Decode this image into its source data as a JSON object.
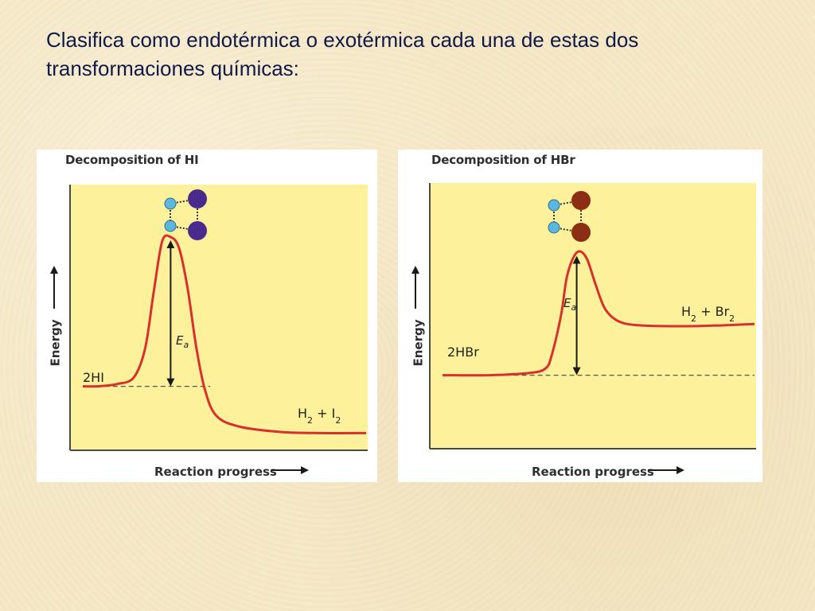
{
  "slide": {
    "title": "Clasifica como endotérmica o exotérmica cada una de estas dos transformaciones químicas:"
  },
  "chart_data": [
    {
      "type": "line",
      "title": "Decomposition of HI",
      "xlabel": "Reaction progress",
      "ylabel": "Energy",
      "reactant_label": "2HI",
      "product_label_parts": [
        "H",
        "2",
        " + I",
        "2"
      ],
      "activation_label": [
        "E",
        "a"
      ],
      "reactant_energy": 0.28,
      "peak_energy": 0.95,
      "product_energy": 0.07,
      "profile": [
        [
          0,
          0.28
        ],
        [
          0.05,
          0.28
        ],
        [
          0.12,
          0.29
        ],
        [
          0.18,
          0.32
        ],
        [
          0.22,
          0.45
        ],
        [
          0.25,
          0.7
        ],
        [
          0.28,
          0.93
        ],
        [
          0.31,
          0.95
        ],
        [
          0.34,
          0.9
        ],
        [
          0.37,
          0.72
        ],
        [
          0.4,
          0.46
        ],
        [
          0.43,
          0.27
        ],
        [
          0.47,
          0.15
        ],
        [
          0.55,
          0.1
        ],
        [
          0.7,
          0.075
        ],
        [
          0.85,
          0.07
        ],
        [
          1.0,
          0.07
        ]
      ],
      "xlim": [
        0,
        1
      ],
      "ylim": [
        0,
        1
      ],
      "molecule_colors": {
        "small_atom": "#5bb7e0",
        "large_atom": "#4a2a8c"
      },
      "curve_color": "#d8302a"
    },
    {
      "type": "line",
      "title": "Decomposition of HBr",
      "xlabel": "Reaction progress",
      "ylabel": "Energy",
      "reactant_label": "2HBr",
      "product_label_parts": [
        "H",
        "2",
        " + Br",
        "2"
      ],
      "activation_label": [
        "E",
        "a"
      ],
      "reactant_energy": 0.33,
      "peak_energy": 0.88,
      "product_energy": 0.55,
      "profile": [
        [
          0,
          0.33
        ],
        [
          0.15,
          0.33
        ],
        [
          0.28,
          0.34
        ],
        [
          0.33,
          0.36
        ],
        [
          0.35,
          0.42
        ],
        [
          0.38,
          0.6
        ],
        [
          0.4,
          0.78
        ],
        [
          0.43,
          0.88
        ],
        [
          0.46,
          0.86
        ],
        [
          0.49,
          0.74
        ],
        [
          0.52,
          0.63
        ],
        [
          0.56,
          0.575
        ],
        [
          0.62,
          0.555
        ],
        [
          0.75,
          0.55
        ],
        [
          0.88,
          0.553
        ],
        [
          1.0,
          0.56
        ]
      ],
      "xlim": [
        0,
        1
      ],
      "ylim": [
        0,
        1
      ],
      "molecule_colors": {
        "small_atom": "#5bb7e0",
        "large_atom": "#8b2e14"
      },
      "curve_color": "#d8302a"
    }
  ]
}
